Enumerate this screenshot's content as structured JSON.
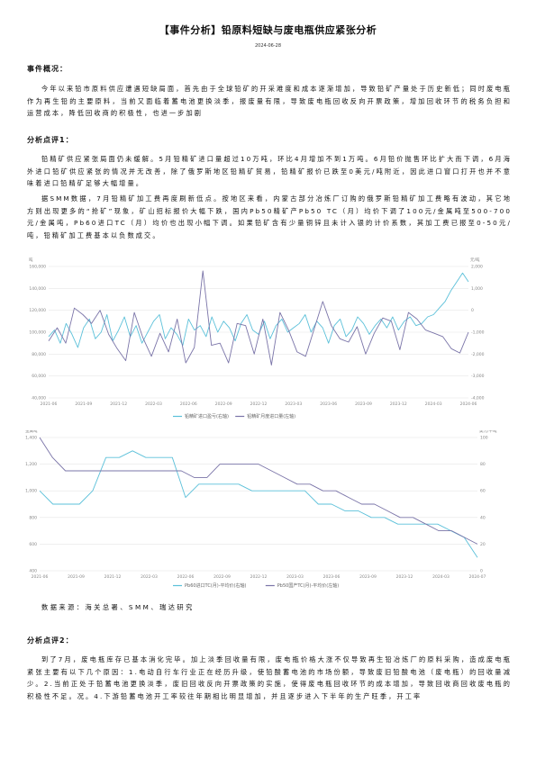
{
  "doc": {
    "title": "【事件分析】铅原料短缺与废电瓶供应紧张分析",
    "date": "2024-06-28",
    "overview_heading": "事件概况：",
    "overview_text": "今年以来铅市原料供应遭遇短缺局面，首先由于全球铅矿的开采难度和成本逐渐增加，导致铅矿产量处于历史新低；同时废电瓶作为再生铅的主要原料，当前又面临着蓄电池更换淡季，报废量有限，导致废电瓶回收反向开票政策，增加回收环节的税务负担和运营成本，降低回收商的积极性，也进一步加剧",
    "comment1_heading": "分析点评1：",
    "comment1_text_a": "铅精矿供应紧张局面仍未缓解。5月铅精矿进口量超过10万吨，环比4月增加不到1万吨。6月铅价抛售环比扩大而下调，6月海外进口铅矿供应紧张的情况并无改善，除了俄罗斯地区铅精矿贸易，铅精矿报价已跌至0美元/吨附近，因此进口窗口打开也并不意味着进口铅精矿足够大幅增量。",
    "comment1_text_b": "据SMM数据，7月铅精矿加工费再度刷新低点。按地区来看，内蒙古部分冶炼厂订购的俄罗斯铅精矿加工费略有波动，其它地方则出现更多的“抢矿”现象，矿山招标报价大幅下跌，国内Pb50精矿产Pb50 TC（月）均价下调了100元/金属吨至500-700元/金属吨，Pb60进口TC（月）均价也出现小幅下调。如果铅矿含有少量铜锌且未计入银的计价系数，其加工费已报至0-50元/吨，铅精矿加工费基本以负数成交。",
    "source_text": "数据来源：海关总署、SMM、瑞达研究",
    "comment2_heading": "分析点评2：",
    "comment2_text": "到了7月，废电瓶库存已基本消化完毕。加上淡季回收量有限，废电瓶价格大涨不仅导致再生铅冶炼厂的原料采购，造成废电瓶紧张主要有以下几个原因：1.电动自行车行业正在经历升级，使铅酸蓄电池的市场份额，导致废旧铅酸电池（废电瓶）的回收量减少。2.当前正处于铅蓄电池更换淡季，废旧回收反向开票政策的实施，使得废电瓶回收环节的成本增加，导致回收商回收废电瓶的积极性不足。况。4.下游铅蓄电池开工率较往年期相比明显增加，并且逐步进入下半年的生产旺季，开工率"
  },
  "chart_data": [
    {
      "type": "line",
      "y_left_label": "吨",
      "y_right_label": "元/吨",
      "y_left_ticks": [
        "160,000",
        "140,000",
        "120,000",
        "100,000",
        "80,000",
        "60,000",
        "40,000"
      ],
      "y_right_ticks": [
        "2,000",
        "1,000",
        "0",
        "-1,000",
        "-2,000",
        "-3,000",
        "-4,000"
      ],
      "ylim_left": [
        40000,
        160000
      ],
      "ylim_right": [
        -4000,
        2000
      ],
      "x_ticks": [
        "2021-06",
        "2021-09",
        "2021-12",
        "2022-03",
        "2022-06",
        "2022-09",
        "2022-12",
        "2023-03",
        "2023-06",
        "2023-09",
        "2023-12",
        "2024-03",
        "2024-06"
      ],
      "grid": true,
      "legend": "bottom",
      "series": [
        {
          "name": "铅精矿进口盈亏(右轴)",
          "axis": "right",
          "color": "#5bc0d9",
          "values": [
            -1200,
            -900,
            -1500,
            -600,
            -1100,
            -1700,
            -800,
            -400,
            -1300,
            -1000,
            -200,
            -1400,
            -900,
            -300,
            -1200,
            -700,
            -1500,
            -1000,
            -500,
            -200,
            -1300,
            -800,
            -1100,
            -1600,
            -400,
            -900,
            -700,
            -1200,
            -300,
            -1000,
            -500,
            -800,
            -1400,
            -600,
            -200,
            -900,
            -1100,
            -500,
            -1300,
            -700,
            -400,
            -1000,
            -800,
            -600,
            -200,
            -1000,
            -500,
            -800,
            -1500,
            -700,
            -400,
            -1200,
            -900,
            -300,
            -600,
            -1100,
            -700,
            -400,
            -800,
            -300,
            -900,
            -500,
            -300,
            -700,
            -600,
            -300,
            -200,
            100,
            400,
            900,
            1300,
            1700,
            1300
          ]
        },
        {
          "name": "铅精矿月度进口量(左轴)",
          "axis": "left",
          "color": "#7a74a8",
          "values": [
            92000,
            104000,
            90000,
            122000,
            116000,
            108000,
            120000,
            98000,
            85000,
            74000,
            118000,
            95000,
            78000,
            99000,
            82000,
            112000,
            72000,
            86000,
            156000,
            88000,
            90000,
            72000,
            108000,
            106000,
            80000,
            112000,
            70000,
            118000,
            102000,
            82000,
            78000,
            103000,
            128000,
            106000,
            94000,
            91000,
            105000,
            80000,
            99000,
            113000,
            110000,
            84000,
            118000,
            112000,
            102000,
            99000,
            96000,
            85000,
            81000,
            100000
          ]
        }
      ]
    },
    {
      "type": "line",
      "y_left_label": "元/金属吨",
      "y_right_label": "美元/干吨",
      "y_left_ticks": [
        "1,400",
        "1,200",
        "1,000",
        "800",
        "600",
        "400"
      ],
      "y_right_ticks": [
        "100",
        "80",
        "60",
        "40",
        "20",
        "0"
      ],
      "ylim_left": [
        400,
        1400
      ],
      "ylim_right": [
        0,
        100
      ],
      "x_ticks": [
        "2021-06",
        "2021-09",
        "2021-12",
        "2022-03",
        "2022-06",
        "2022-09",
        "2022-12",
        "2023-03",
        "2023-06",
        "2023-09",
        "2023-12",
        "2024-03",
        "2024-07"
      ],
      "grid": true,
      "legend": "bottom",
      "series": [
        {
          "name": "Pb60进口TC(月)-平均价(右轴)",
          "axis": "right",
          "color": "#5bc0d9",
          "values": [
            60,
            50,
            50,
            50,
            60,
            85,
            85,
            90,
            85,
            85,
            85,
            55,
            65,
            65,
            65,
            65,
            60,
            60,
            60,
            60,
            60,
            50,
            50,
            45,
            45,
            40,
            40,
            35,
            35,
            35,
            35,
            30,
            25,
            10
          ]
        },
        {
          "name": "Pb50国产TC(月)-平均价(左轴)",
          "axis": "left",
          "color": "#7a74a8",
          "values": [
            1400,
            1250,
            1150,
            1150,
            1150,
            1150,
            1150,
            1150,
            1150,
            1150,
            1150,
            1150,
            1100,
            1100,
            1200,
            1200,
            1200,
            1200,
            1150,
            1100,
            1050,
            1050,
            1000,
            1000,
            950,
            900,
            900,
            850,
            800,
            800,
            750,
            700,
            700,
            650,
            600
          ]
        }
      ]
    }
  ]
}
